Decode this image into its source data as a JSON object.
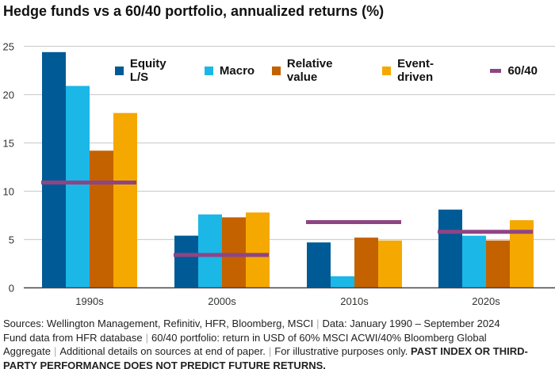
{
  "title": "Hedge funds vs a 60/40 portfolio, annualized returns (%)",
  "chart_data": {
    "type": "bar",
    "title": "Hedge funds vs a 60/40 portfolio, annualized returns (%)",
    "categories": [
      "1990s",
      "2000s",
      "2010s",
      "2020s"
    ],
    "series": [
      {
        "name": "Equity L/S",
        "color": "#005A96",
        "values": [
          24.4,
          5.4,
          4.7,
          8.1
        ]
      },
      {
        "name": "Macro",
        "color": "#1BB7E6",
        "values": [
          20.9,
          7.6,
          1.2,
          5.4
        ]
      },
      {
        "name": "Relative value",
        "color": "#C46200",
        "values": [
          14.2,
          7.3,
          5.2,
          4.9
        ]
      },
      {
        "name": "Event-driven",
        "color": "#F5A800",
        "values": [
          18.1,
          7.8,
          4.9,
          7.0
        ]
      }
    ],
    "benchmark": {
      "name": "60/40",
      "color": "#8E4585",
      "values": [
        10.9,
        3.4,
        6.8,
        5.8
      ]
    },
    "yticks": [
      "0",
      "5",
      "10",
      "15",
      "20",
      "25"
    ],
    "ylim": [
      0,
      25
    ],
    "grid": true,
    "legend": "top-right"
  },
  "footer": {
    "line1a": "Sources: Wellington Management, Refinitiv, HFR, Bloomberg, MSCI",
    "line1b": "Data: January 1990 – September 2024",
    "line2a": "Fund data from HFR database",
    "line2b": "60/40 portfolio: return in USD of 60% MSCI ACWI/40% Bloomberg Global Aggregate",
    "line3a": "Additional details on sources at end of paper.",
    "line3b": "For illustrative purposes only.",
    "disclaimer": "PAST INDEX OR THIRD-PARTY PERFORMANCE DOES NOT PREDICT FUTURE RETURNS."
  }
}
